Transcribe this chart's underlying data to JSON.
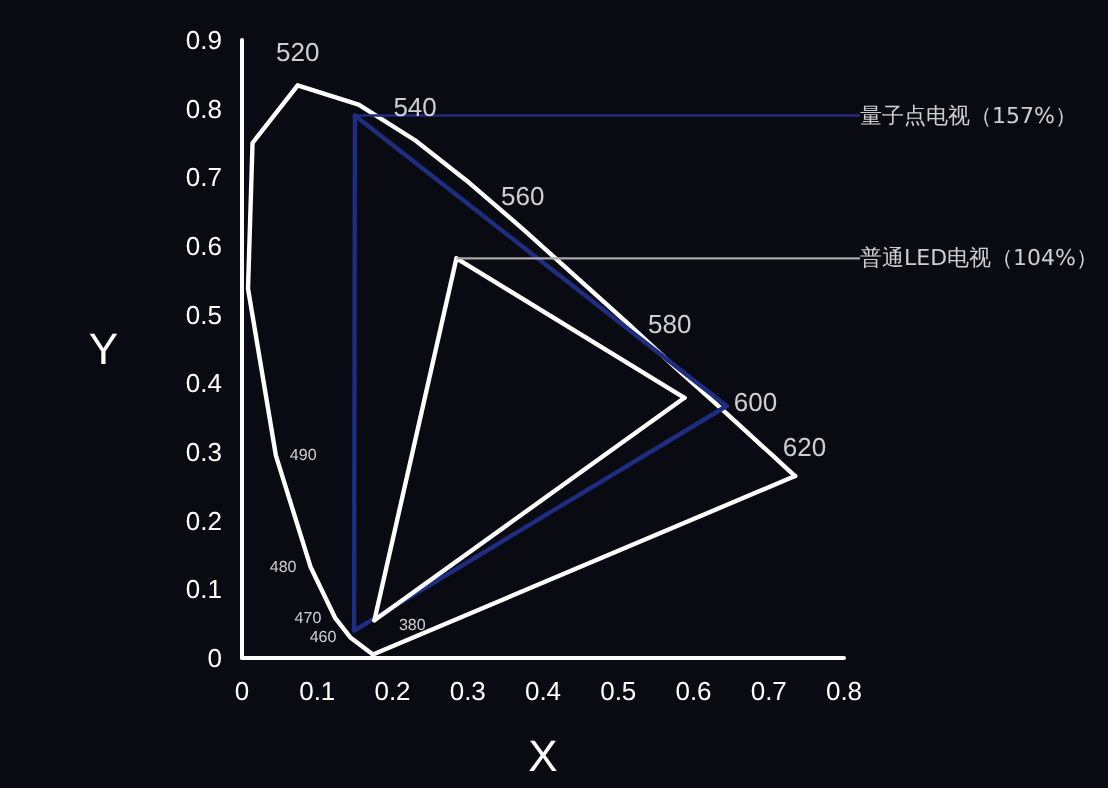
{
  "chart_data": {
    "type": "line",
    "xlabel": "X",
    "ylabel": "Y",
    "xlim": [
      0,
      0.8
    ],
    "ylim": [
      0,
      0.9
    ],
    "xticks": [
      0,
      0.1,
      0.2,
      0.3,
      0.4,
      0.5,
      0.6,
      0.7,
      0.8
    ],
    "yticks": [
      0,
      0.1,
      0.2,
      0.3,
      0.4,
      0.5,
      0.6,
      0.7,
      0.8,
      0.9
    ],
    "grid": false,
    "marker": "none",
    "line_style": "solid",
    "series": [
      {
        "color": "#ffffff",
        "x": [
          0.174,
          0.144,
          0.124,
          0.091,
          0.045,
          0.008,
          0.014,
          0.074,
          0.155,
          0.23,
          0.302,
          0.373,
          0.444,
          0.513,
          0.575,
          0.627,
          0.666,
          0.692,
          0.708,
          0.719,
          0.735
        ],
        "values": [
          0.005,
          0.03,
          0.058,
          0.133,
          0.295,
          0.538,
          0.75,
          0.834,
          0.806,
          0.754,
          0.692,
          0.625,
          0.555,
          0.487,
          0.424,
          0.373,
          0.334,
          0.308,
          0.292,
          0.281,
          0.265
        ]
      },
      {
        "color": "#ffffff",
        "x": [
          0.174,
          0.735
        ],
        "values": [
          0.005,
          0.265
        ]
      },
      {
        "name": "量子点电视（157%）",
        "color": "#1f2d80",
        "x": [
          0.15,
          0.644
        ],
        "values": [
          0.79,
          0.367
        ]
      },
      {
        "color": "#1f2d80",
        "x": [
          0.149,
          0.644
        ],
        "values": [
          0.04,
          0.367
        ]
      },
      {
        "color": "#1f2d80",
        "x": [
          0.149,
          0.15
        ],
        "values": [
          0.04,
          0.79
        ]
      },
      {
        "name": "普通LED电视（104%）",
        "color": "#ffffff",
        "x": [
          0.285,
          0.588
        ],
        "values": [
          0.582,
          0.379
        ]
      },
      {
        "color": "#ffffff",
        "x": [
          0.176,
          0.588
        ],
        "values": [
          0.055,
          0.379
        ]
      },
      {
        "color": "#ffffff",
        "x": [
          0.176,
          0.285
        ],
        "values": [
          0.055,
          0.582
        ]
      }
    ],
    "annotations": [
      {
        "text": "520",
        "x": 0.074,
        "y": 0.834
      },
      {
        "text": "540",
        "x": 0.23,
        "y": 0.754
      },
      {
        "text": "560",
        "x": 0.373,
        "y": 0.625
      },
      {
        "text": "580",
        "x": 0.513,
        "y": 0.487
      },
      {
        "text": "600",
        "x": 0.627,
        "y": 0.373
      },
      {
        "text": "620",
        "x": 0.692,
        "y": 0.308
      },
      {
        "text": "490",
        "x": 0.045,
        "y": 0.295
      },
      {
        "text": "480",
        "x": 0.091,
        "y": 0.133
      },
      {
        "text": "470",
        "x": 0.124,
        "y": 0.058
      },
      {
        "text": "460",
        "x": 0.144,
        "y": 0.03
      },
      {
        "text": "380",
        "x": 0.174,
        "y": 0.005
      }
    ]
  }
}
